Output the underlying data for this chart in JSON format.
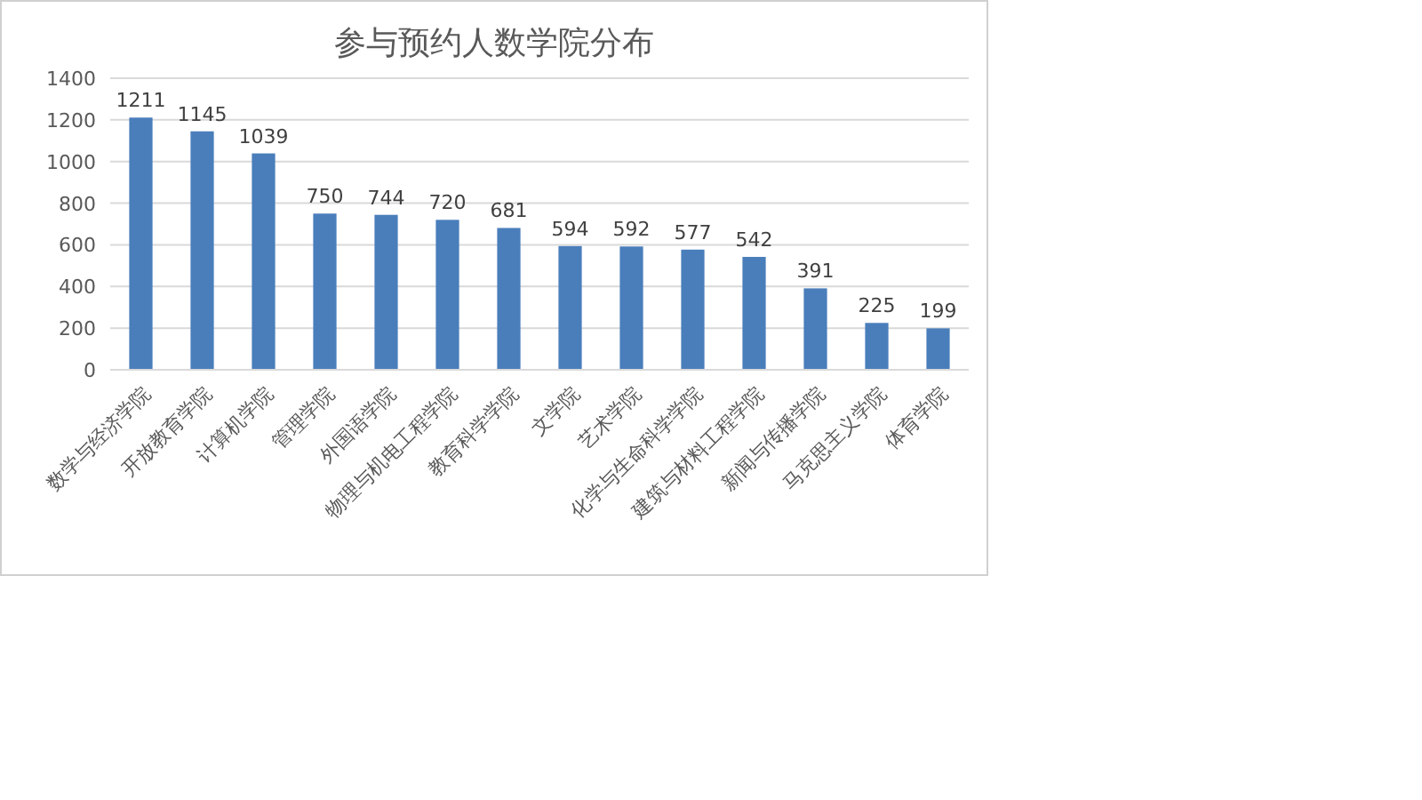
{
  "chart_data": {
    "type": "bar",
    "title": "参与预约人数学院分布",
    "categories": [
      "数学与经济学院",
      "开放教育学院",
      "计算机学院",
      "管理学院",
      "外国语学院",
      "物理与机电工程学院",
      "教育科学学院",
      "文学院",
      "艺术学院",
      "化学与生命科学学院",
      "建筑与材料工程学院",
      "新闻与传播学院",
      "马克思主义学院",
      "体育学院"
    ],
    "values": [
      1211,
      1145,
      1039,
      750,
      744,
      720,
      681,
      594,
      592,
      577,
      542,
      391,
      225,
      199
    ],
    "color": "#4a7ebb",
    "ylim": [
      0,
      1400
    ],
    "yticks": [
      0,
      200,
      400,
      600,
      800,
      1000,
      1200,
      1400
    ],
    "grid": "y",
    "data_labels": true
  }
}
